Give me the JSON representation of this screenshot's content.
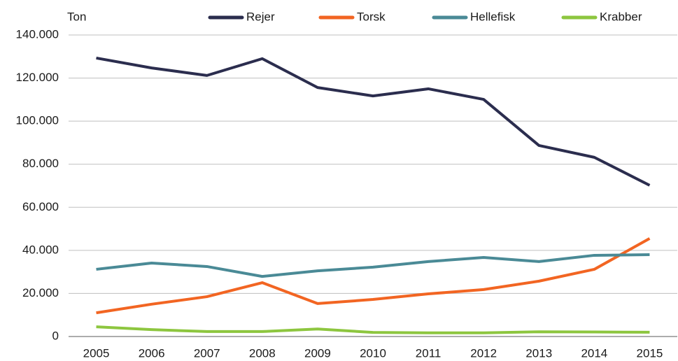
{
  "chart_data": {
    "type": "line",
    "y_label": "Ton",
    "categories": [
      "2005",
      "2006",
      "2007",
      "2008",
      "2009",
      "2010",
      "2011",
      "2012",
      "2013",
      "2014",
      "2015"
    ],
    "series": [
      {
        "name": "Rejer",
        "color": "#2b2d4e",
        "values": [
          129300,
          124700,
          121200,
          129000,
          115600,
          111700,
          115000,
          110100,
          88700,
          83200,
          70200
        ]
      },
      {
        "name": "Torsk",
        "color": "#f26522",
        "values": [
          11000,
          15000,
          18500,
          25000,
          15300,
          17200,
          19800,
          21800,
          25700,
          31200,
          45500
        ]
      },
      {
        "name": "Hellefisk",
        "color": "#4a8a96",
        "values": [
          31200,
          34100,
          32500,
          27900,
          30500,
          32200,
          34800,
          36700,
          34800,
          37700,
          38000
        ]
      },
      {
        "name": "Krabber",
        "color": "#8dc63f",
        "values": [
          4500,
          3200,
          2300,
          2300,
          3500,
          1900,
          1700,
          1700,
          2200,
          2100,
          2000
        ]
      }
    ],
    "ylim": [
      0,
      140000
    ],
    "yticks": [
      0,
      {
        "value": 20000,
        "label": "20.000"
      },
      {
        "value": 40000,
        "label": "40.000"
      },
      {
        "value": 60000,
        "label": "60.000"
      },
      {
        "value": 80000,
        "label": "80.000"
      },
      {
        "value": 100000,
        "label": "100.000"
      },
      {
        "value": 120000,
        "label": "120.000"
      },
      {
        "value": 140000,
        "label": "140.000"
      }
    ],
    "grid": true,
    "legend": "top"
  }
}
